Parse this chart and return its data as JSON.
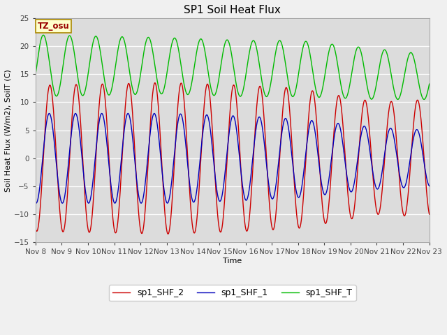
{
  "title": "SP1 Soil Heat Flux",
  "xlabel": "Time",
  "ylabel": "Soil Heat Flux (W/m2), SoilT (C)",
  "ylim": [
    -15,
    25
  ],
  "xlim": [
    0,
    15
  ],
  "tz_label": "TZ_osu",
  "fig_bg_color": "#f0f0f0",
  "plot_bg_color": "#dcdcdc",
  "series_colors": {
    "sp1_SHF_2": "#cc0000",
    "sp1_SHF_1": "#0000bb",
    "sp1_SHF_T": "#00bb00"
  },
  "xtick_labels": [
    "Nov 8",
    "Nov 9",
    "Nov 10",
    "Nov 11",
    "Nov 12",
    "Nov 13",
    "Nov 14",
    "Nov 15",
    "Nov 16",
    "Nov 17",
    "Nov 18",
    "Nov 19",
    "Nov 20",
    "Nov 21",
    "Nov 22",
    "Nov 23"
  ],
  "ytick_values": [
    -15,
    -10,
    -5,
    0,
    5,
    10,
    15,
    20,
    25
  ],
  "title_fontsize": 11,
  "axis_label_fontsize": 8,
  "tick_fontsize": 7.5,
  "legend_fontsize": 9
}
